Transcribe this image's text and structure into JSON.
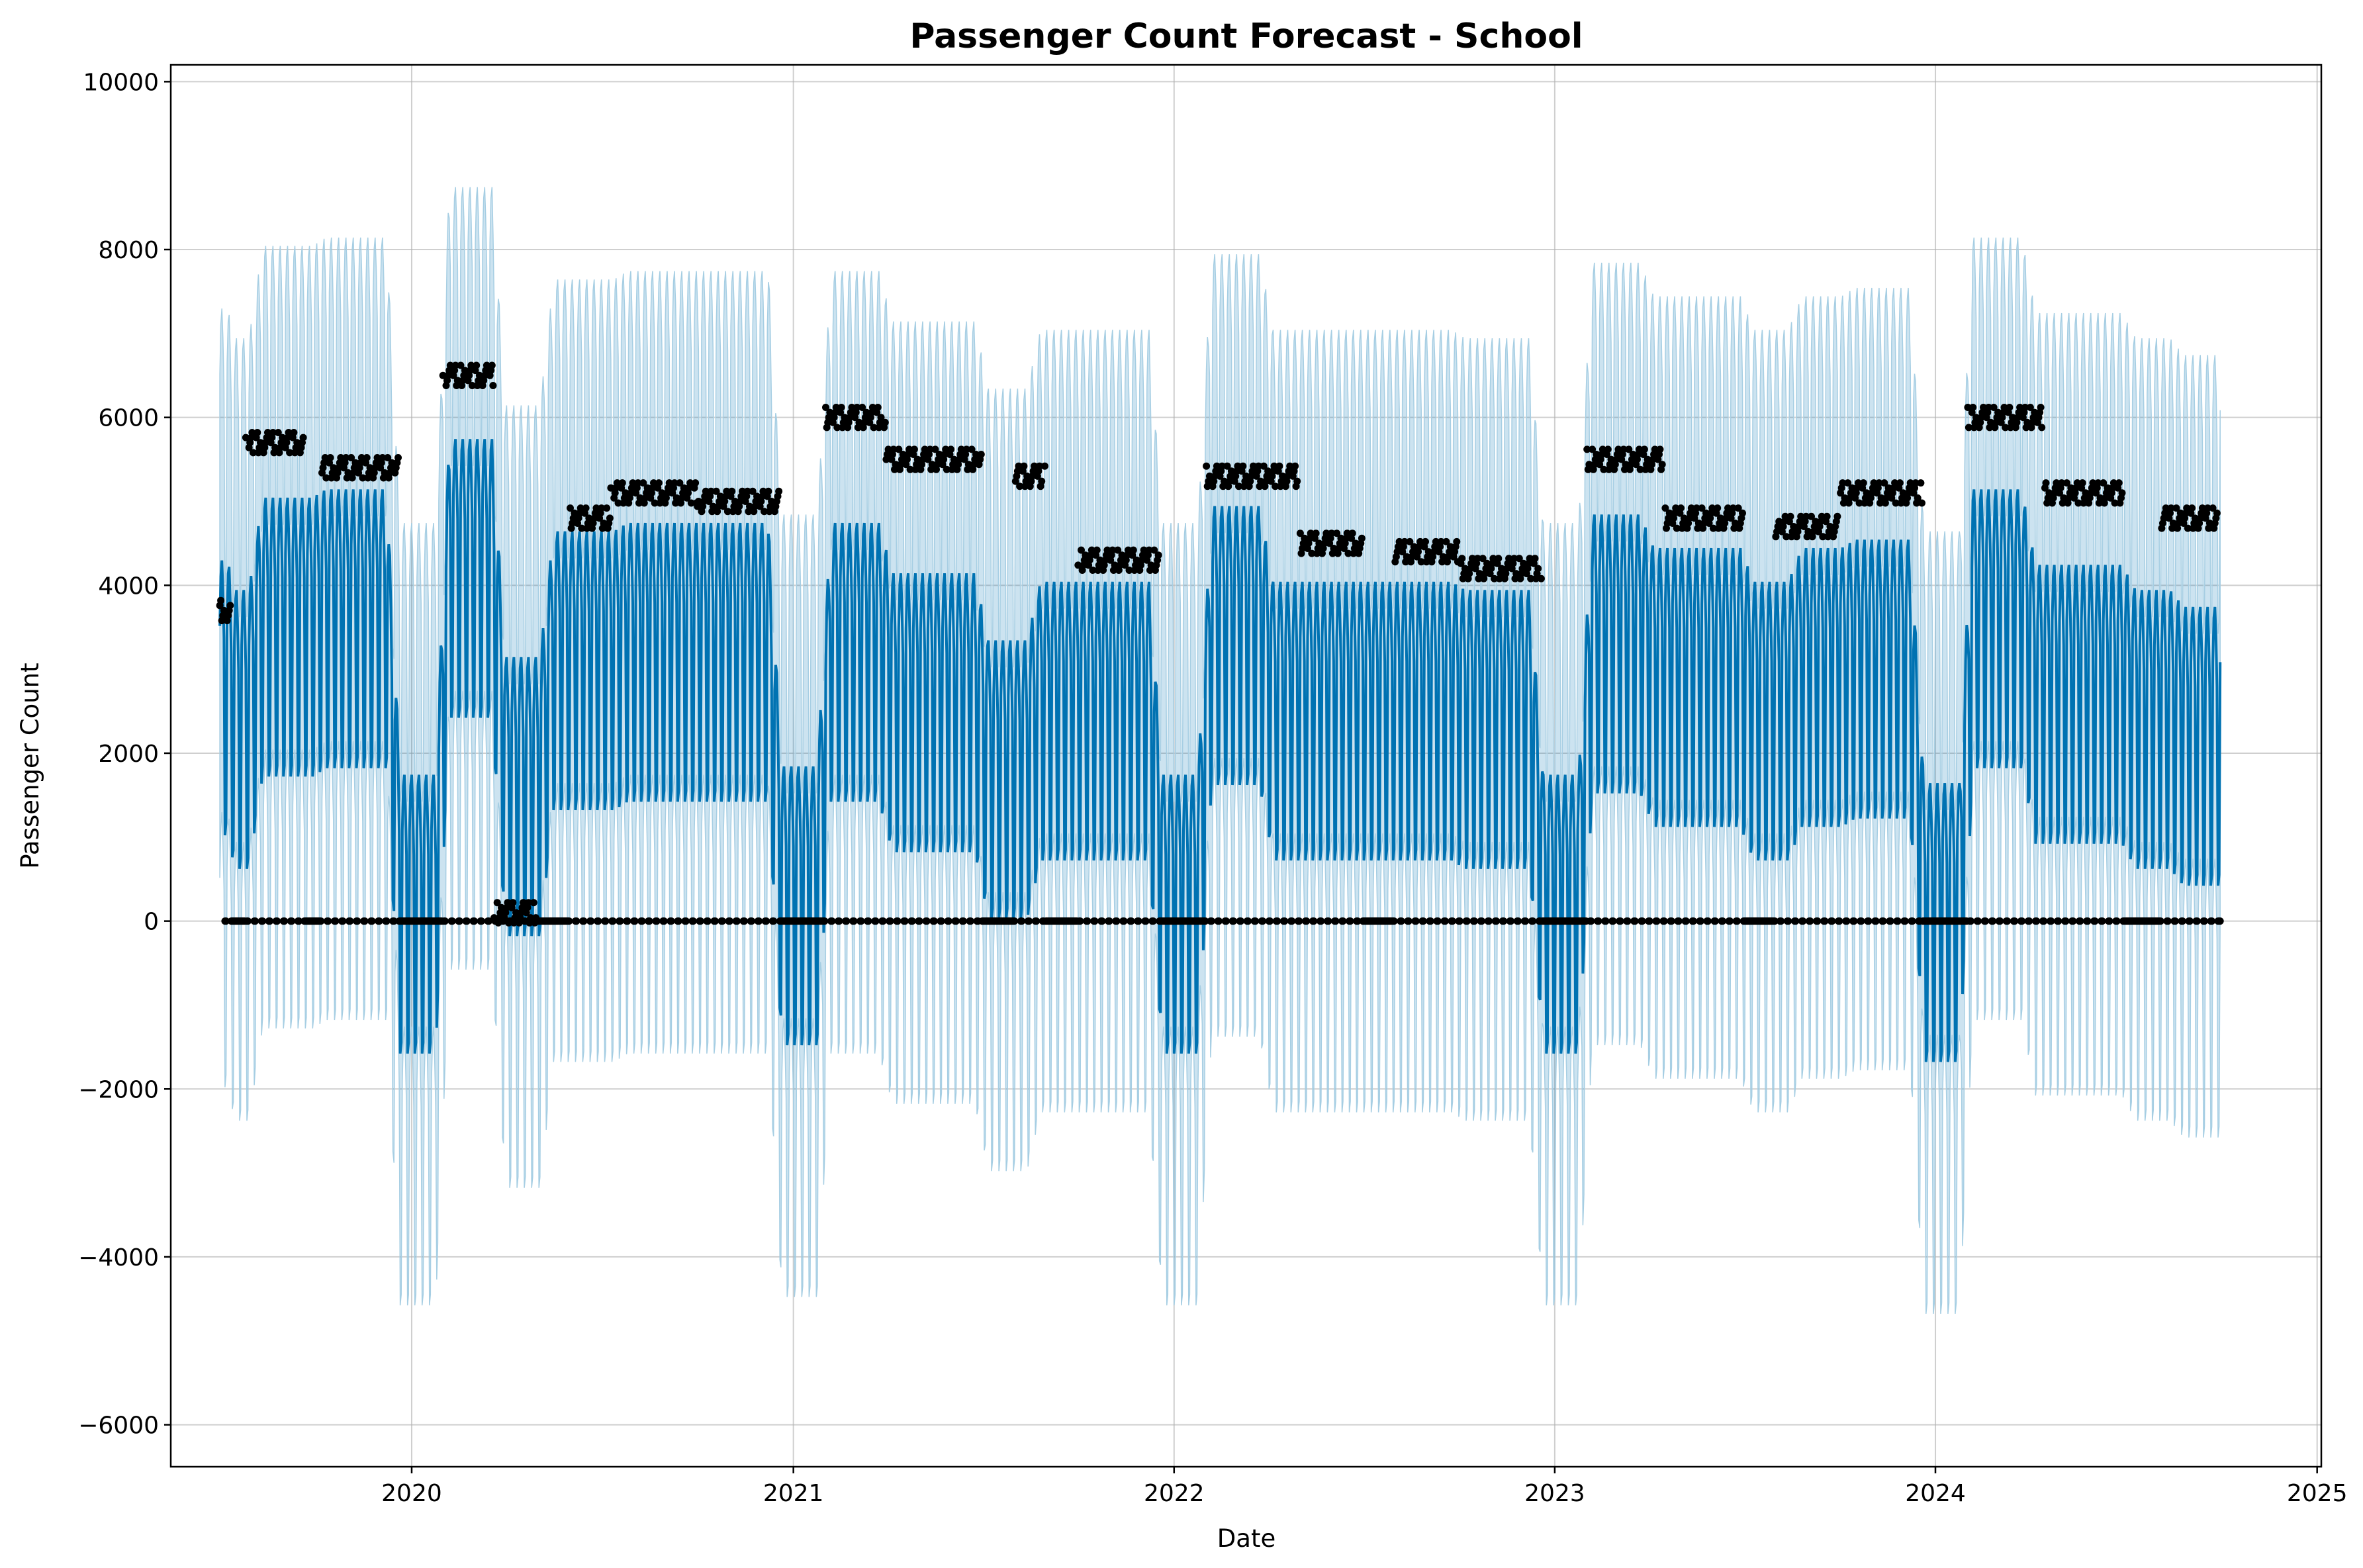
{
  "chart_data": {
    "type": "line",
    "title": "Passenger Count Forecast - School",
    "xlabel": "Date",
    "ylabel": "Passenger Count",
    "xlim": [
      "2019-05-15",
      "2025-01-05"
    ],
    "ylim": [
      -6500,
      10200
    ],
    "x_ticks": [
      {
        "date": "2020-01-01",
        "label": "2020"
      },
      {
        "date": "2021-01-01",
        "label": "2021"
      },
      {
        "date": "2022-01-01",
        "label": "2022"
      },
      {
        "date": "2023-01-01",
        "label": "2023"
      },
      {
        "date": "2024-01-01",
        "label": "2024"
      },
      {
        "date": "2025-01-01",
        "label": "2025"
      }
    ],
    "y_ticks": [
      {
        "value": -6000,
        "label": "−6000"
      },
      {
        "value": -4000,
        "label": "−4000"
      },
      {
        "value": -2000,
        "label": "−2000"
      },
      {
        "value": 0,
        "label": "0"
      },
      {
        "value": 2000,
        "label": "2000"
      },
      {
        "value": 4000,
        "label": "4000"
      },
      {
        "value": 6000,
        "label": "6000"
      },
      {
        "value": 8000,
        "label": "8000"
      },
      {
        "value": 10000,
        "label": "10000"
      }
    ],
    "grid": true,
    "series": [
      {
        "kind": "forecast",
        "color": "#0072B2",
        "note_date_range": [
          "2019-07-01",
          "2024-09-30"
        ],
        "weekly_profile_weekday": 1.0,
        "weekly_profile_weekend": -0.35,
        "segments": [
          {
            "start": "2019-07-01",
            "end": "2019-07-10",
            "level": 2400
          },
          {
            "start": "2019-07-10",
            "end": "2019-08-05",
            "level": 1800
          },
          {
            "start": "2019-08-05",
            "end": "2019-10-05",
            "level": 2900
          },
          {
            "start": "2019-10-05",
            "end": "2019-12-15",
            "level": 3000
          },
          {
            "start": "2019-12-15",
            "end": "2020-01-31",
            "level": -400
          },
          {
            "start": "2020-01-31",
            "end": "2020-03-25",
            "level": 3600
          },
          {
            "start": "2020-03-25",
            "end": "2020-05-10",
            "level": 1000
          },
          {
            "start": "2020-05-10",
            "end": "2020-07-20",
            "level": 2500
          },
          {
            "start": "2020-07-20",
            "end": "2020-10-20",
            "level": 2600
          },
          {
            "start": "2020-10-20",
            "end": "2020-12-15",
            "level": 2600
          },
          {
            "start": "2020-12-15",
            "end": "2021-01-31",
            "level": -300
          },
          {
            "start": "2021-01-31",
            "end": "2021-03-31",
            "level": 2600
          },
          {
            "start": "2021-03-31",
            "end": "2021-07-01",
            "level": 2000
          },
          {
            "start": "2021-07-01",
            "end": "2021-08-20",
            "level": 1200
          },
          {
            "start": "2021-08-20",
            "end": "2021-10-15",
            "level": 1900
          },
          {
            "start": "2021-10-15",
            "end": "2021-12-15",
            "level": 1900
          },
          {
            "start": "2021-12-15",
            "end": "2022-01-31",
            "level": -400
          },
          {
            "start": "2022-01-31",
            "end": "2022-03-31",
            "level": 2800
          },
          {
            "start": "2022-03-31",
            "end": "2022-07-01",
            "level": 1900
          },
          {
            "start": "2022-07-01",
            "end": "2022-10-01",
            "level": 1900
          },
          {
            "start": "2022-10-01",
            "end": "2022-12-15",
            "level": 1800
          },
          {
            "start": "2022-12-15",
            "end": "2023-01-31",
            "level": -400
          },
          {
            "start": "2023-01-31",
            "end": "2023-03-31",
            "level": 2700
          },
          {
            "start": "2023-03-31",
            "end": "2023-07-05",
            "level": 2300
          },
          {
            "start": "2023-07-05",
            "end": "2023-08-20",
            "level": 1900
          },
          {
            "start": "2023-08-20",
            "end": "2023-10-10",
            "level": 2300
          },
          {
            "start": "2023-10-10",
            "end": "2023-12-15",
            "level": 2400
          },
          {
            "start": "2023-12-15",
            "end": "2024-01-31",
            "level": -500
          },
          {
            "start": "2024-01-31",
            "end": "2024-03-31",
            "level": 3000
          },
          {
            "start": "2024-03-31",
            "end": "2024-07-05",
            "level": 2100
          },
          {
            "start": "2024-07-05",
            "end": "2024-08-20",
            "level": 1800
          },
          {
            "start": "2024-08-20",
            "end": "2024-09-30",
            "level": 1600
          }
        ],
        "amplitude": 2700
      },
      {
        "kind": "uncertainty_interval",
        "color": "#0072B2",
        "opacity": 0.2,
        "half_width": 3000
      },
      {
        "kind": "observed_points",
        "color": "#000000",
        "weekend_value": 0,
        "weekday_segments": [
          {
            "start": "2019-07-01",
            "end": "2019-07-12",
            "value": 3700
          },
          {
            "start": "2019-07-26",
            "end": "2019-09-20",
            "value": 5700
          },
          {
            "start": "2019-10-05",
            "end": "2019-12-20",
            "value": 5400
          },
          {
            "start": "2020-01-31",
            "end": "2020-03-20",
            "value": 6500
          },
          {
            "start": "2020-03-20",
            "end": "2020-04-30",
            "value": 100
          },
          {
            "start": "2020-06-01",
            "end": "2020-07-10",
            "value": 4800
          },
          {
            "start": "2020-07-10",
            "end": "2020-10-01",
            "value": 5100
          },
          {
            "start": "2020-10-01",
            "end": "2020-12-20",
            "value": 5000
          },
          {
            "start": "2021-01-31",
            "end": "2021-03-31",
            "value": 6000
          },
          {
            "start": "2021-03-31",
            "end": "2021-07-01",
            "value": 5500
          },
          {
            "start": "2021-08-01",
            "end": "2021-08-31",
            "value": 5300
          },
          {
            "start": "2021-10-01",
            "end": "2021-12-20",
            "value": 4300
          },
          {
            "start": "2022-02-01",
            "end": "2022-04-30",
            "value": 5300
          },
          {
            "start": "2022-04-30",
            "end": "2022-07-01",
            "value": 4500
          },
          {
            "start": "2022-08-01",
            "end": "2022-10-01",
            "value": 4400
          },
          {
            "start": "2022-10-01",
            "end": "2022-12-20",
            "value": 4200
          },
          {
            "start": "2023-02-01",
            "end": "2023-04-15",
            "value": 5500
          },
          {
            "start": "2023-04-15",
            "end": "2023-07-01",
            "value": 4800
          },
          {
            "start": "2023-08-01",
            "end": "2023-10-01",
            "value": 4700
          },
          {
            "start": "2023-10-01",
            "end": "2023-12-20",
            "value": 5100
          },
          {
            "start": "2024-02-01",
            "end": "2024-04-15",
            "value": 6000
          },
          {
            "start": "2024-04-15",
            "end": "2024-07-01",
            "value": 5100
          },
          {
            "start": "2024-08-05",
            "end": "2024-09-30",
            "value": 4800
          }
        ]
      }
    ]
  }
}
